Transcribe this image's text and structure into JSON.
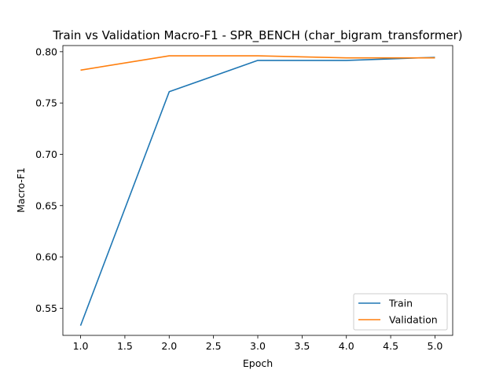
{
  "chart_data": {
    "type": "line",
    "title": "Train vs Validation Macro-F1 - SPR_BENCH (char_bigram_transformer)",
    "xlabel": "Epoch",
    "ylabel": "Macro-F1",
    "xlim": [
      0.8,
      5.2
    ],
    "ylim": [
      0.5235,
      0.806
    ],
    "x_ticks": [
      "1.0",
      "1.5",
      "2.0",
      "2.5",
      "3.0",
      "3.5",
      "4.0",
      "4.5",
      "5.0"
    ],
    "y_ticks": [
      "0.55",
      "0.60",
      "0.65",
      "0.70",
      "0.75",
      "0.80"
    ],
    "grid": false,
    "legend_position": "lower right",
    "series": [
      {
        "name": "Train",
        "color": "#1f77b4",
        "x": [
          1,
          2,
          3,
          4,
          5
        ],
        "values": [
          0.533,
          0.761,
          0.7915,
          0.7915,
          0.7945
        ]
      },
      {
        "name": "Validation",
        "color": "#ff7f0e",
        "x": [
          1,
          2,
          3,
          4,
          5
        ],
        "values": [
          0.782,
          0.796,
          0.796,
          0.794,
          0.794
        ]
      }
    ]
  }
}
